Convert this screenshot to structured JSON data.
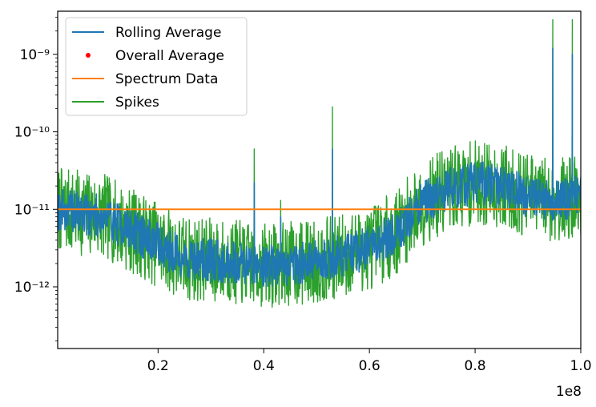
{
  "chart_data": {
    "type": "line",
    "title": "",
    "xlabel": "",
    "ylabel": "",
    "x_offset_label": "1e8",
    "xlim": [
      1000000,
      100000000
    ],
    "ylim": [
      1.6e-13,
      3.6e-09
    ],
    "yscale": "log",
    "x_ticks": [
      20000000,
      40000000,
      60000000,
      80000000,
      100000000
    ],
    "x_tick_labels": [
      "0.2",
      "0.4",
      "0.6",
      "0.8",
      "1.0"
    ],
    "y_ticks": [
      1e-12,
      1e-11,
      1e-10,
      1e-09
    ],
    "y_tick_labels": [
      "10⁻¹²",
      "10⁻¹¹",
      "10⁻¹⁰",
      "10⁻⁹"
    ],
    "grid": false,
    "legend": {
      "position": "top-left",
      "entries": [
        {
          "label": "Rolling Average",
          "marker": "line",
          "color": "#1f77b4"
        },
        {
          "label": "Overall Average",
          "marker": "dot",
          "color": "#ff0000"
        },
        {
          "label": "Spectrum Data",
          "marker": "line",
          "color": "#ff7f0e"
        },
        {
          "label": "Spikes",
          "marker": "line",
          "color": "#2ca02c"
        }
      ]
    },
    "series": [
      {
        "name": "Spikes",
        "color": "#2ca02c",
        "trend_x": [
          1000000,
          10000000,
          20000000,
          25000000,
          30000000,
          40000000,
          50000000,
          55000000,
          60000000,
          65000000,
          70000000,
          75000000,
          80000000,
          85000000,
          90000000,
          95000000,
          100000000
        ],
        "trend_y": [
          1e-11,
          8e-12,
          3.5e-12,
          2.3e-12,
          2.2e-12,
          1.9e-12,
          2.1e-12,
          2.5e-12,
          3.2e-12,
          5e-12,
          1.2e-11,
          1.8e-11,
          2.2e-11,
          2e-11,
          1.5e-11,
          1.3e-11,
          1.5e-11
        ],
        "spikes": [
          [
            38200000,
            6e-11
          ],
          [
            43200000,
            1.3e-11
          ],
          [
            53000000,
            2.1e-10
          ],
          [
            94700000,
            2.8e-09
          ],
          [
            98400000,
            2.8e-09
          ]
        ]
      },
      {
        "name": "Rolling Average",
        "color": "#1f77b4",
        "trend_x": [
          1000000,
          10000000,
          20000000,
          25000000,
          30000000,
          40000000,
          50000000,
          55000000,
          60000000,
          65000000,
          70000000,
          75000000,
          80000000,
          85000000,
          90000000,
          95000000,
          100000000
        ],
        "trend_y": [
          1e-11,
          8e-12,
          3.5e-12,
          2.3e-12,
          2.2e-12,
          1.9e-12,
          2.1e-12,
          2.5e-12,
          3.2e-12,
          5e-12,
          1.2e-11,
          1.8e-11,
          2.2e-11,
          2e-11,
          1.5e-11,
          1.3e-11,
          1.5e-11
        ],
        "spikes": [
          [
            38200000,
            2.2e-11
          ],
          [
            43200000,
            8e-12
          ],
          [
            53000000,
            6e-11
          ],
          [
            94700000,
            1.2e-09
          ],
          [
            98400000,
            1e-09
          ]
        ]
      },
      {
        "name": "Spectrum Data",
        "color": "#ff7f0e",
        "x": [
          1000000,
          100000000
        ],
        "y": [
          1e-11,
          1e-11
        ]
      }
    ]
  }
}
